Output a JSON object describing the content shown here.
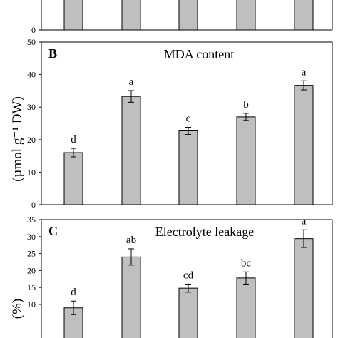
{
  "chart_data": [
    {
      "panel": "",
      "type": "bar",
      "title": "",
      "ylabel": "",
      "ylim": [
        0,
        null
      ],
      "yticks": [
        0
      ],
      "values": [
        null,
        null,
        null,
        null,
        null
      ],
      "letters": [
        "",
        "",
        "",
        "",
        ""
      ],
      "partial": "top cut off; only bar bottoms and the 0 tick are visible"
    },
    {
      "panel": "B",
      "type": "bar",
      "title": "MDA content",
      "ylabel": "(µmol g⁻¹ DW)",
      "ylim": [
        0,
        50
      ],
      "yticks": [
        0,
        10,
        20,
        30,
        40,
        50
      ],
      "values": [
        16.0,
        33.3,
        22.7,
        27.0,
        36.7
      ],
      "errors": [
        1.3,
        1.8,
        1.1,
        1.1,
        1.4
      ],
      "letters": [
        "d",
        "a",
        "c",
        "b",
        "a"
      ]
    },
    {
      "panel": "C",
      "type": "bar",
      "title": "Electrolyte  leakage",
      "ylabel": "(%)",
      "ylim": [
        0,
        35
      ],
      "yticks": [
        10,
        15,
        20,
        25,
        30,
        35
      ],
      "values": [
        9.0,
        24.0,
        14.8,
        17.8,
        29.4
      ],
      "errors": [
        2.0,
        2.4,
        1.2,
        1.8,
        2.6
      ],
      "letters": [
        "d",
        "ab",
        "cd",
        "bc",
        "a"
      ]
    }
  ]
}
